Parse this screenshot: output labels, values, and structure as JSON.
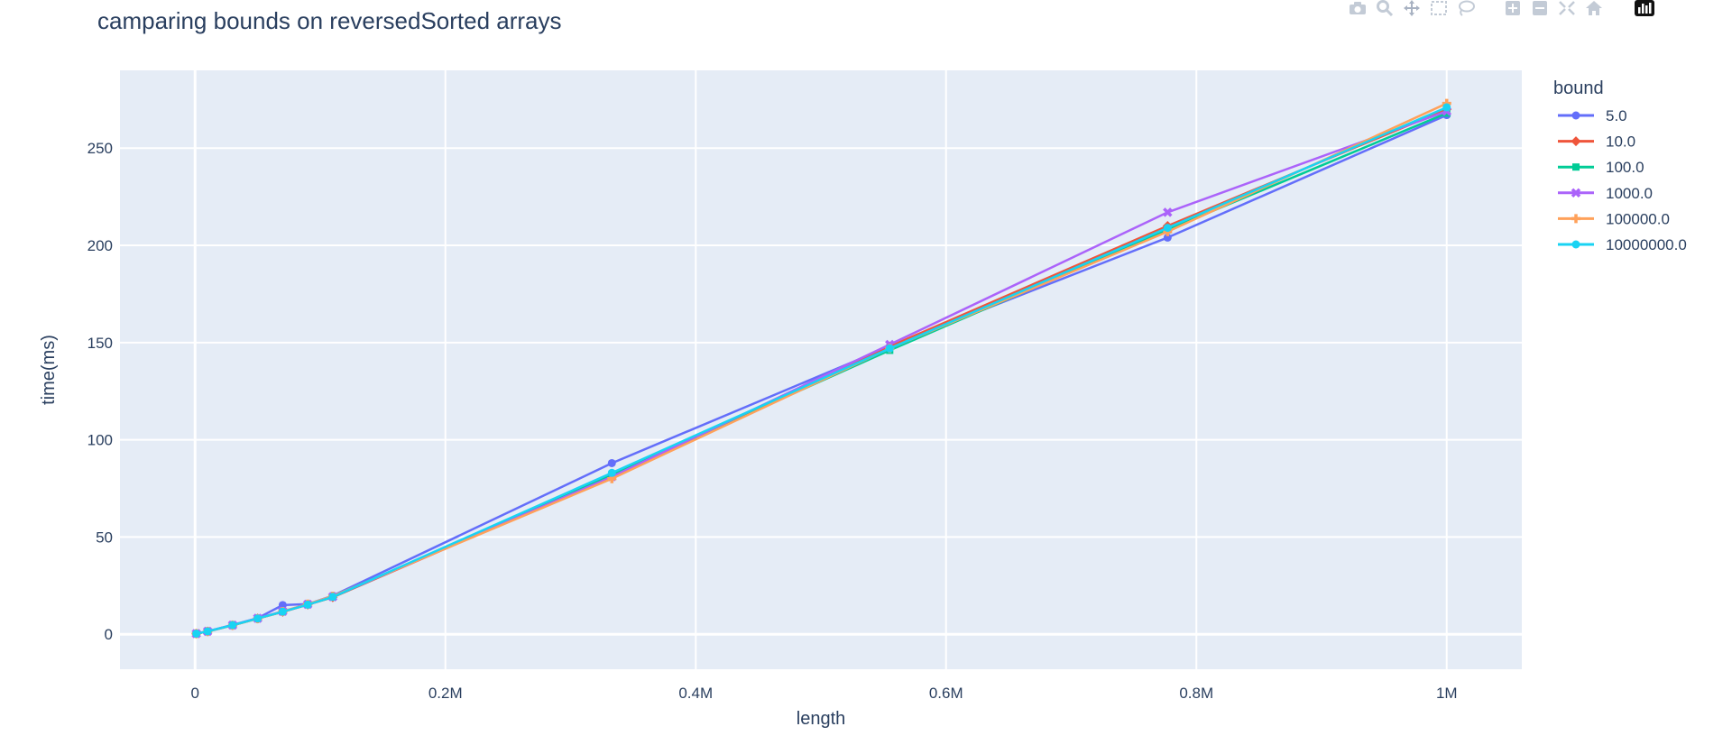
{
  "chart_data": {
    "type": "line",
    "title": "camparing bounds on reversedSorted arrays",
    "xlabel": "length",
    "ylabel": "time(ms)",
    "xlim": [
      -60000,
      1060000
    ],
    "ylim": [
      -18,
      290
    ],
    "xticks": [
      0,
      200000,
      400000,
      600000,
      800000,
      1000000
    ],
    "xticklabels": [
      "0",
      "0.2M",
      "0.4M",
      "0.6M",
      "0.8M",
      "1M"
    ],
    "yticks": [
      0,
      50,
      100,
      150,
      200,
      250
    ],
    "yticklabels": [
      "0",
      "50",
      "100",
      "150",
      "200",
      "250"
    ],
    "grid": true,
    "plot_bg": "#e5ecf6",
    "legend_title": "bound",
    "legend_position": "right",
    "x": [
      1000,
      10000,
      30000,
      50000,
      70000,
      90000,
      110000,
      333000,
      555000,
      777000,
      1000000
    ],
    "series": [
      {
        "name": "5.0",
        "color": "#636efa",
        "marker": "circle",
        "values": [
          0.3,
          1.5,
          4.8,
          8.3,
          15.0,
          15.5,
          19.8,
          88,
          148,
          204,
          267
        ]
      },
      {
        "name": "10.0",
        "color": "#ef553b",
        "marker": "diamond",
        "values": [
          0.3,
          1.4,
          4.6,
          8.1,
          11.5,
          15.2,
          19.0,
          81,
          148,
          210,
          270
        ]
      },
      {
        "name": "100.0",
        "color": "#00cc96",
        "marker": "square",
        "values": [
          0.3,
          1.4,
          4.6,
          8.0,
          11.6,
          15.3,
          19.1,
          82,
          146,
          208,
          268
        ]
      },
      {
        "name": "1000.0",
        "color": "#ab63fa",
        "marker": "x",
        "values": [
          0.3,
          1.5,
          4.7,
          8.2,
          11.8,
          15.4,
          19.3,
          81,
          149,
          217,
          269
        ]
      },
      {
        "name": "100000.0",
        "color": "#ffa15a",
        "marker": "cross",
        "values": [
          0.3,
          1.4,
          4.6,
          8.0,
          11.7,
          15.5,
          19.6,
          80,
          147,
          207,
          273
        ]
      },
      {
        "name": "10000000.0",
        "color": "#19d3f3",
        "marker": "circle",
        "values": [
          0.3,
          1.5,
          4.7,
          8.1,
          11.6,
          15.2,
          19.2,
          83,
          147,
          209,
          271
        ]
      }
    ]
  },
  "modebar": {
    "icons": [
      "camera-icon",
      "zoom-icon",
      "pan-icon",
      "box-select-icon",
      "lasso-select-icon",
      "zoom-in-icon",
      "zoom-out-icon",
      "autoscale-icon",
      "reset-axes-icon",
      "plotly-logo-icon"
    ]
  }
}
